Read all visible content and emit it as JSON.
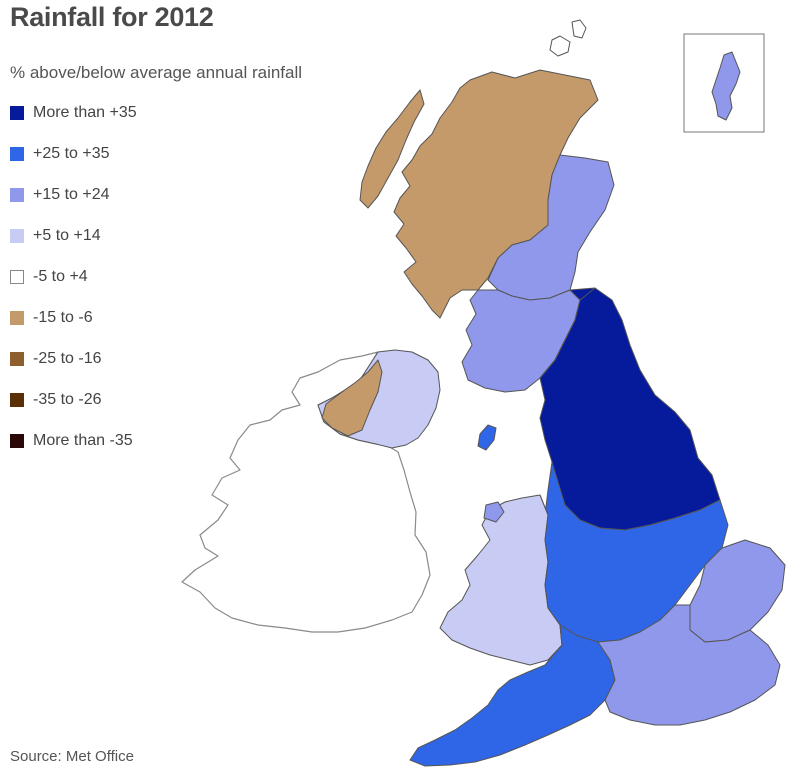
{
  "header": {
    "title": "Rainfall for 2012",
    "subtitle": "% above/below average annual rainfall"
  },
  "legend": [
    {
      "label": "More than +35",
      "color": "#061a9c"
    },
    {
      "label": "+25 to +35",
      "color": "#2f66e8"
    },
    {
      "label": "+15 to +24",
      "color": "#8f98ea"
    },
    {
      "label": "+5 to +14",
      "color": "#c8ccf4"
    },
    {
      "label": "-5 to +4",
      "color": "#ffffff"
    },
    {
      "label": "-15 to -6",
      "color": "#c49a6a"
    },
    {
      "label": "-25 to -16",
      "color": "#8f5e2e"
    },
    {
      "label": "-35 to -26",
      "color": "#5a2e06"
    },
    {
      "label": "More than -35",
      "color": "#2a0808"
    }
  ],
  "footer": {
    "source": "Source: Met Office"
  },
  "colors": {
    "outline": "#555555",
    "ireland_outline": "#8a8a8a",
    "inset_border": "#777777"
  },
  "map": {
    "regions": [
      {
        "name": "ireland",
        "category": "-5 to +4"
      },
      {
        "name": "northern-ireland",
        "category": "+5 to +14"
      },
      {
        "name": "scotland-highlands",
        "category": "-15 to -6"
      },
      {
        "name": "scotland-east",
        "category": "+15 to +24"
      },
      {
        "name": "scotland-south",
        "category": "+15 to +24"
      },
      {
        "name": "northern-england",
        "category": "More than +35"
      },
      {
        "name": "wales",
        "category": "+5 to +14"
      },
      {
        "name": "midlands",
        "category": "+25 to +35"
      },
      {
        "name": "south-west-england",
        "category": "+25 to +35"
      },
      {
        "name": "south-east-england",
        "category": "+15 to +24"
      },
      {
        "name": "east-anglia",
        "category": "+15 to +24"
      }
    ],
    "inset": "shetland-inset"
  }
}
